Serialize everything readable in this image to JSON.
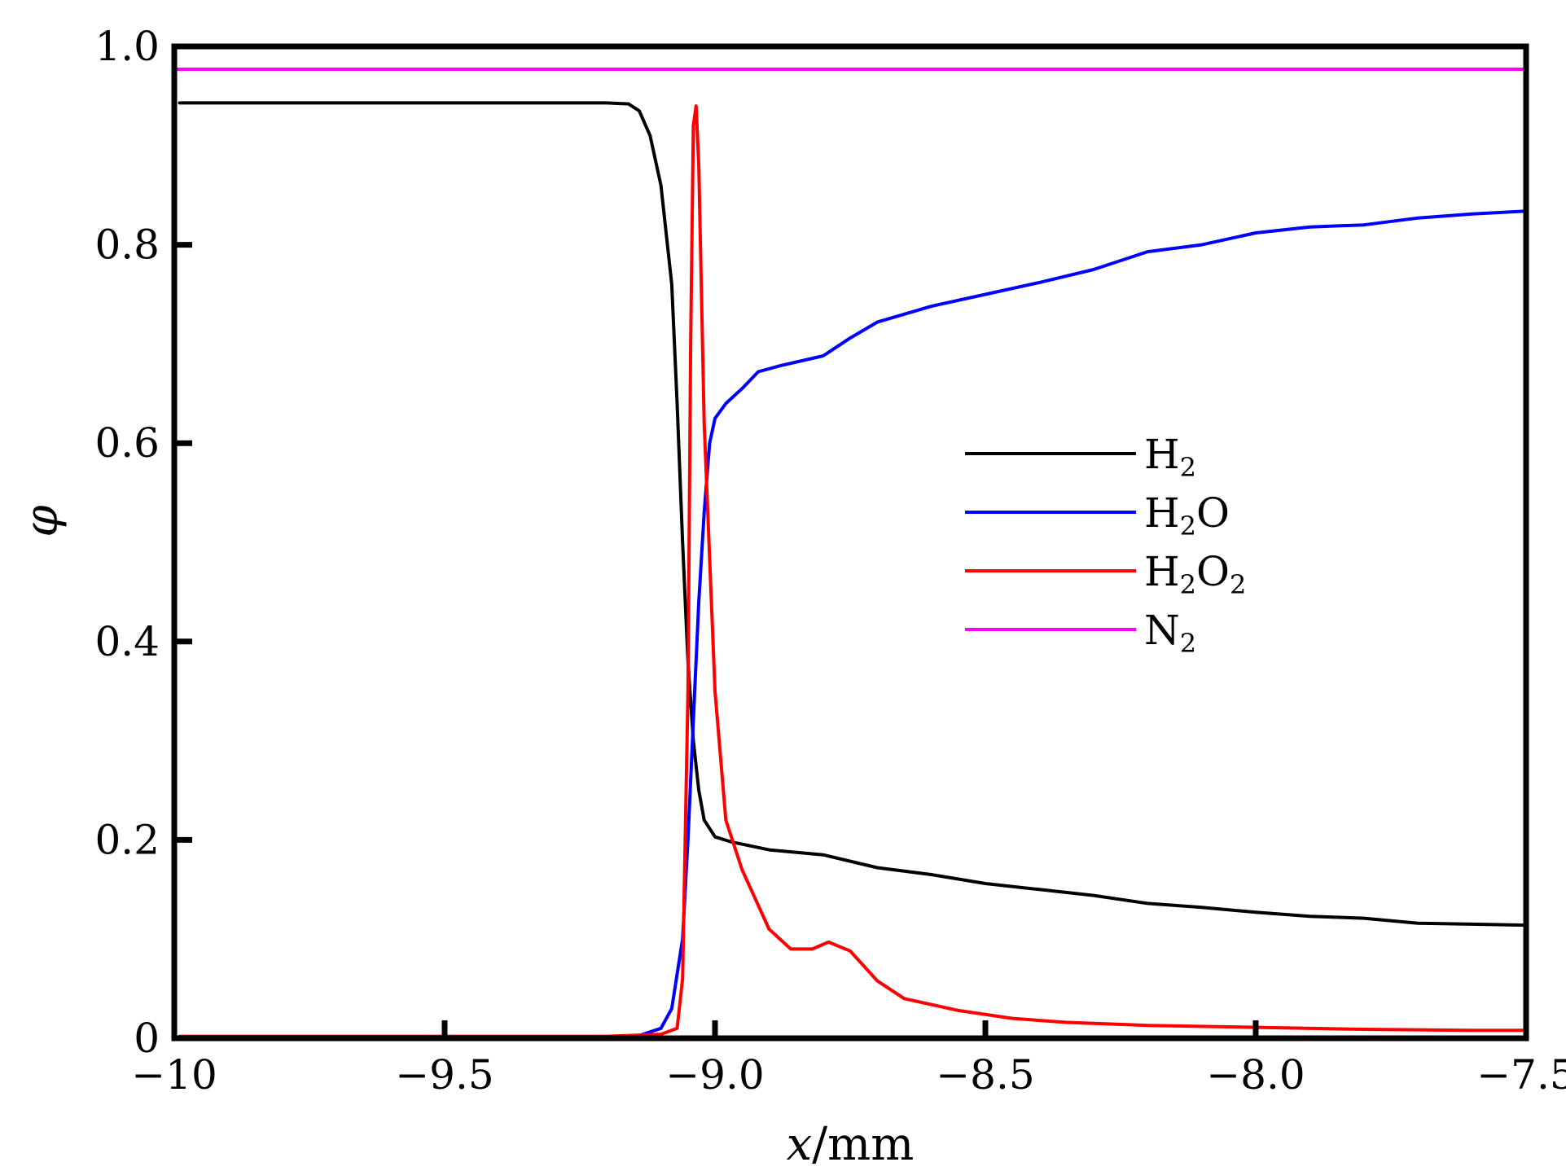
{
  "chart_data": {
    "type": "line",
    "title": "",
    "xlabel": "x/mm",
    "xlabel_var": "x",
    "xlabel_unit": "/mm",
    "ylabel": "φ",
    "xlim": [
      -10,
      -7.5
    ],
    "ylim": [
      0,
      1.0
    ],
    "grid": false,
    "legend_position": "center-right",
    "x_ticks": [
      -10,
      -9.5,
      -9.0,
      -8.5,
      -8.0,
      -7.5
    ],
    "x_tick_labels": [
      "−10",
      "−9.5",
      "−9.0",
      "−8.5",
      "−8.0",
      "−7.5"
    ],
    "y_ticks": [
      0,
      0.2,
      0.4,
      0.6,
      0.8,
      1.0
    ],
    "y_tick_labels": [
      "0",
      "0.2",
      "0.4",
      "0.6",
      "0.8",
      "1.0"
    ],
    "series": [
      {
        "name": "H2",
        "label_main": "H",
        "label_parts": [
          [
            "H",
            ""
          ],
          [
            "2",
            "sub"
          ]
        ],
        "color": "#000000",
        "points": [
          [
            -9.99,
            0.943
          ],
          [
            -9.5,
            0.943
          ],
          [
            -9.2,
            0.943
          ],
          [
            -9.16,
            0.942
          ],
          [
            -9.14,
            0.935
          ],
          [
            -9.12,
            0.91
          ],
          [
            -9.1,
            0.86
          ],
          [
            -9.08,
            0.76
          ],
          [
            -9.07,
            0.64
          ],
          [
            -9.06,
            0.5
          ],
          [
            -9.05,
            0.38
          ],
          [
            -9.04,
            0.3
          ],
          [
            -9.03,
            0.25
          ],
          [
            -9.02,
            0.22
          ],
          [
            -9.0,
            0.203
          ],
          [
            -8.97,
            0.198
          ],
          [
            -8.9,
            0.19
          ],
          [
            -8.8,
            0.185
          ],
          [
            -8.7,
            0.172
          ],
          [
            -8.6,
            0.165
          ],
          [
            -8.5,
            0.156
          ],
          [
            -8.4,
            0.15
          ],
          [
            -8.3,
            0.144
          ],
          [
            -8.2,
            0.136
          ],
          [
            -8.1,
            0.132
          ],
          [
            -8.0,
            0.127
          ],
          [
            -7.9,
            0.123
          ],
          [
            -7.8,
            0.121
          ],
          [
            -7.7,
            0.116
          ],
          [
            -7.6,
            0.115
          ],
          [
            -7.5,
            0.114
          ]
        ]
      },
      {
        "name": "H2O",
        "label_parts": [
          [
            "H",
            ""
          ],
          [
            "2",
            "sub"
          ],
          [
            "O",
            ""
          ]
        ],
        "color": "#0000ff",
        "points": [
          [
            -9.99,
            0.0
          ],
          [
            -9.2,
            0.0
          ],
          [
            -9.15,
            0.001
          ],
          [
            -9.1,
            0.01
          ],
          [
            -9.08,
            0.03
          ],
          [
            -9.06,
            0.1
          ],
          [
            -9.05,
            0.2
          ],
          [
            -9.04,
            0.32
          ],
          [
            -9.03,
            0.44
          ],
          [
            -9.02,
            0.53
          ],
          [
            -9.01,
            0.6
          ],
          [
            -9.0,
            0.625
          ],
          [
            -8.98,
            0.64
          ],
          [
            -8.95,
            0.655
          ],
          [
            -8.92,
            0.672
          ],
          [
            -8.88,
            0.678
          ],
          [
            -8.8,
            0.688
          ],
          [
            -8.75,
            0.706
          ],
          [
            -8.7,
            0.722
          ],
          [
            -8.6,
            0.738
          ],
          [
            -8.5,
            0.75
          ],
          [
            -8.4,
            0.762
          ],
          [
            -8.3,
            0.775
          ],
          [
            -8.2,
            0.793
          ],
          [
            -8.1,
            0.8
          ],
          [
            -8.0,
            0.812
          ],
          [
            -7.9,
            0.818
          ],
          [
            -7.8,
            0.82
          ],
          [
            -7.7,
            0.827
          ],
          [
            -7.6,
            0.831
          ],
          [
            -7.5,
            0.834
          ]
        ]
      },
      {
        "name": "H2O2",
        "label_parts": [
          [
            "H",
            ""
          ],
          [
            "2",
            "sub"
          ],
          [
            "O",
            ""
          ],
          [
            "2",
            "sub"
          ]
        ],
        "color": "#ff0000",
        "points": [
          [
            -9.99,
            0.002
          ],
          [
            -9.2,
            0.002
          ],
          [
            -9.1,
            0.004
          ],
          [
            -9.07,
            0.01
          ],
          [
            -9.06,
            0.06
          ],
          [
            -9.05,
            0.35
          ],
          [
            -9.045,
            0.7
          ],
          [
            -9.04,
            0.92
          ],
          [
            -9.035,
            0.94
          ],
          [
            -9.03,
            0.88
          ],
          [
            -9.02,
            0.62
          ],
          [
            -9.0,
            0.35
          ],
          [
            -8.98,
            0.22
          ],
          [
            -8.95,
            0.17
          ],
          [
            -8.9,
            0.11
          ],
          [
            -8.86,
            0.09
          ],
          [
            -8.82,
            0.09
          ],
          [
            -8.79,
            0.097
          ],
          [
            -8.75,
            0.088
          ],
          [
            -8.7,
            0.058
          ],
          [
            -8.65,
            0.04
          ],
          [
            -8.55,
            0.028
          ],
          [
            -8.45,
            0.02
          ],
          [
            -8.35,
            0.016
          ],
          [
            -8.2,
            0.013
          ],
          [
            -8.0,
            0.011
          ],
          [
            -7.8,
            0.009
          ],
          [
            -7.6,
            0.008
          ],
          [
            -7.5,
            0.008
          ]
        ]
      },
      {
        "name": "N2",
        "label_parts": [
          [
            "N",
            ""
          ],
          [
            "2",
            "sub"
          ]
        ],
        "color": "#ff00ff",
        "points": [
          [
            -10,
            0.977
          ],
          [
            -7.5,
            0.977
          ]
        ]
      }
    ]
  }
}
